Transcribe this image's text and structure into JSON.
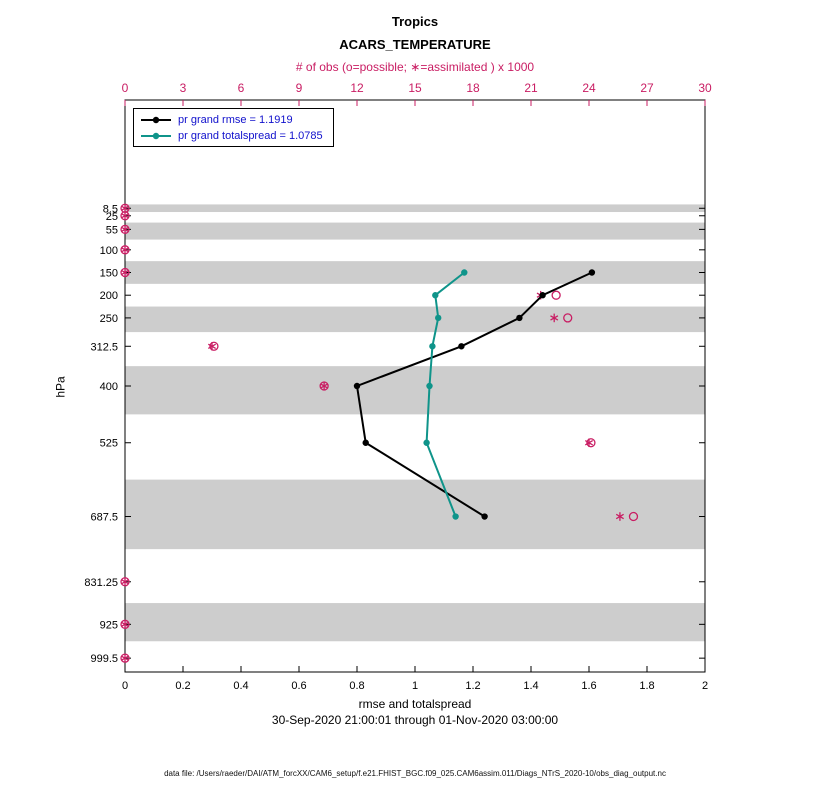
{
  "titles": {
    "line1": "Tropics",
    "line2": "ACARS_TEMPERATURE"
  },
  "subtitle": "30-Sep-2020 21:00:01 through 01-Nov-2020 03:00:00",
  "footer": "data file: /Users/raeder/DAI/ATM_forcXX/CAM6_setup/f.e21.FHIST_BGC.f09_025.CAM6assim.011/Diags_NTrS_2020-10/obs_diag_output.nc",
  "colors": {
    "obs": "#c91d63",
    "axis": "#000000",
    "band": "#cdcdcd",
    "legend_text": "#1010cc"
  },
  "chart_data": {
    "type": "line",
    "title": "Tropics ACARS_TEMPERATURE",
    "xlabel": "rmse and totalspread",
    "x2label": "# of obs (o=possible; ∗=assimilated ) x 1000",
    "ylabel": "hPa",
    "xlim": [
      0,
      2
    ],
    "x2lim": [
      0,
      30
    ],
    "ylim_pressure": [
      -230,
      1030
    ],
    "xticks": [
      0,
      0.2,
      0.4,
      0.6,
      0.8,
      1,
      1.2,
      1.4,
      1.6,
      1.8,
      2
    ],
    "x2ticks": [
      0,
      3,
      6,
      9,
      12,
      15,
      18,
      21,
      24,
      27,
      30
    ],
    "levels": [
      8.5,
      25,
      55,
      100,
      150,
      200,
      250,
      312.5,
      400,
      525,
      687.5,
      831.25,
      925,
      999.5
    ],
    "grid": false,
    "legend_position": "top-left",
    "series": [
      {
        "name": "pr grand rmse = 1.1919",
        "color": "#000000",
        "points": [
          [
            150,
            1.61
          ],
          [
            200,
            1.44
          ],
          [
            250,
            1.36
          ],
          [
            312.5,
            1.16
          ],
          [
            400,
            0.8
          ],
          [
            525,
            0.83
          ],
          [
            687.5,
            1.24
          ]
        ]
      },
      {
        "name": "pr grand totalspread = 1.0785",
        "color": "#0f948a",
        "points": [
          [
            150,
            1.17
          ],
          [
            200,
            1.07
          ],
          [
            250,
            1.08
          ],
          [
            312.5,
            1.06
          ],
          [
            400,
            1.05
          ],
          [
            525,
            1.04
          ],
          [
            687.5,
            1.14
          ]
        ]
      }
    ],
    "obs_counts_thousands": [
      {
        "level": 8.5,
        "possible": 0,
        "assimilated": 0
      },
      {
        "level": 25,
        "possible": 0,
        "assimilated": 0
      },
      {
        "level": 55,
        "possible": 0,
        "assimilated": 0
      },
      {
        "level": 100,
        "possible": 0,
        "assimilated": 0
      },
      {
        "level": 150,
        "possible": 0,
        "assimilated": 0
      },
      {
        "level": 200,
        "possible": 22.3,
        "assimilated": 21.5
      },
      {
        "level": 250,
        "possible": 22.9,
        "assimilated": 22.2
      },
      {
        "level": 312.5,
        "possible": 4.6,
        "assimilated": 4.5
      },
      {
        "level": 400,
        "possible": 10.3,
        "assimilated": 10.3
      },
      {
        "level": 525,
        "possible": 24.1,
        "assimilated": 24.0
      },
      {
        "level": 687.5,
        "possible": 26.3,
        "assimilated": 25.6
      },
      {
        "level": 831.25,
        "possible": 0,
        "assimilated": 0
      },
      {
        "level": 925,
        "possible": 0,
        "assimilated": 0
      },
      {
        "level": 999.5,
        "possible": 0,
        "assimilated": 0
      }
    ],
    "shaded_bands_pressure": [
      [
        0,
        16.75
      ],
      [
        40,
        77.5
      ],
      [
        125,
        175
      ],
      [
        225,
        281.25
      ],
      [
        356.25,
        462.5
      ],
      [
        606.25,
        759.375
      ],
      [
        878.125,
        962.25
      ]
    ]
  }
}
